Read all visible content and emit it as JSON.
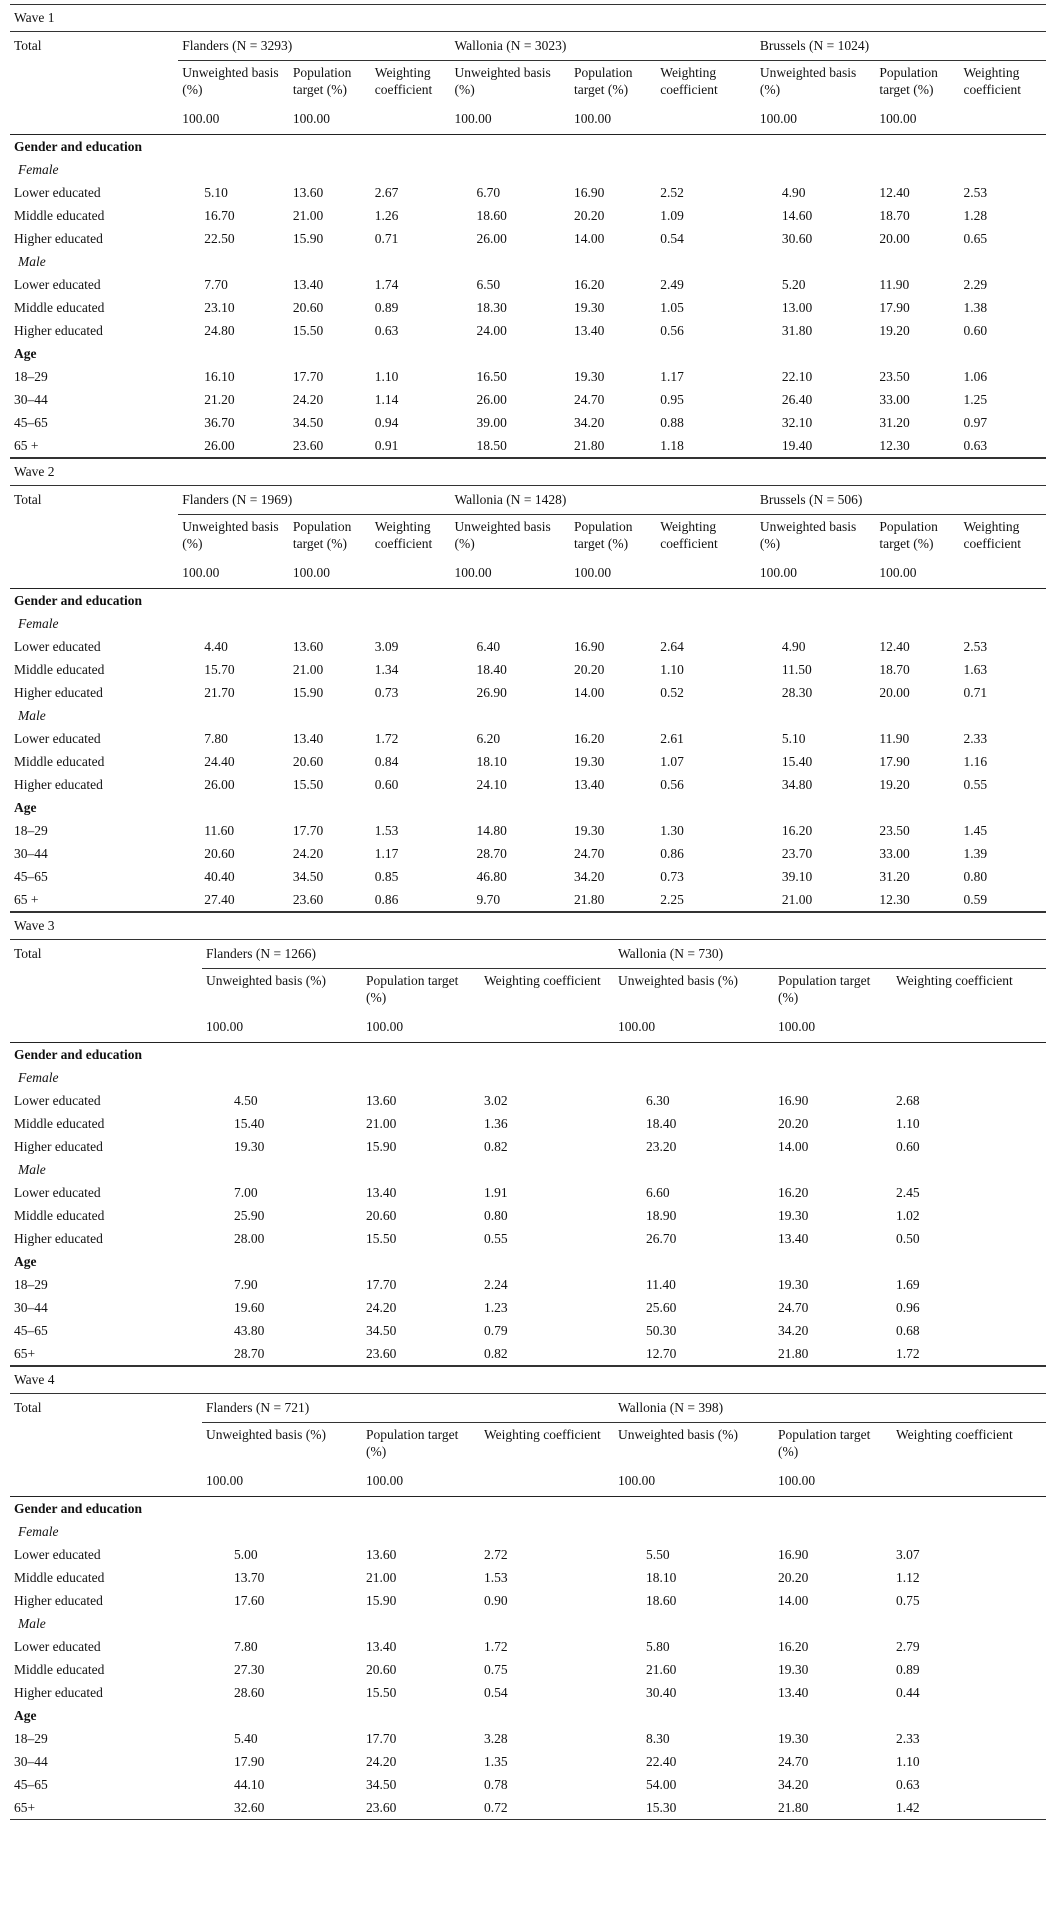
{
  "waves": [
    {
      "title": "Wave 1",
      "total_label": "Total",
      "columns": [
        "Unweighted basis (%)",
        "Population target (%)",
        "Weighting coefficient"
      ],
      "regions": [
        {
          "label": "Flanders (N = 3293)",
          "totals": [
            "100.00",
            "100.00"
          ]
        },
        {
          "label": "Wallonia (N = 3023)",
          "totals": [
            "100.00",
            "100.00"
          ]
        },
        {
          "label": "Brussels (N = 1024)",
          "totals": [
            "100.00",
            "100.00"
          ]
        }
      ],
      "sections": [
        {
          "title": "Gender and education",
          "groups": [
            {
              "label": "Female",
              "rows": [
                {
                  "label": "Lower educated",
                  "values": [
                    "5.10",
                    "13.60",
                    "2.67",
                    "6.70",
                    "16.90",
                    "2.52",
                    "4.90",
                    "12.40",
                    "2.53"
                  ]
                },
                {
                  "label": "Middle educated",
                  "values": [
                    "16.70",
                    "21.00",
                    "1.26",
                    "18.60",
                    "20.20",
                    "1.09",
                    "14.60",
                    "18.70",
                    "1.28"
                  ]
                },
                {
                  "label": "Higher educated",
                  "values": [
                    "22.50",
                    "15.90",
                    "0.71",
                    "26.00",
                    "14.00",
                    "0.54",
                    "30.60",
                    "20.00",
                    "0.65"
                  ]
                }
              ]
            },
            {
              "label": "Male",
              "rows": [
                {
                  "label": "Lower educated",
                  "values": [
                    "7.70",
                    "13.40",
                    "1.74",
                    "6.50",
                    "16.20",
                    "2.49",
                    "5.20",
                    "11.90",
                    "2.29"
                  ]
                },
                {
                  "label": "Middle educated",
                  "values": [
                    "23.10",
                    "20.60",
                    "0.89",
                    "18.30",
                    "19.30",
                    "1.05",
                    "13.00",
                    "17.90",
                    "1.38"
                  ]
                },
                {
                  "label": "Higher educated",
                  "values": [
                    "24.80",
                    "15.50",
                    "0.63",
                    "24.00",
                    "13.40",
                    "0.56",
                    "31.80",
                    "19.20",
                    "0.60"
                  ]
                }
              ]
            }
          ]
        },
        {
          "title": "Age",
          "groups": [
            {
              "rows": [
                {
                  "label": "18–29",
                  "values": [
                    "16.10",
                    "17.70",
                    "1.10",
                    "16.50",
                    "19.30",
                    "1.17",
                    "22.10",
                    "23.50",
                    "1.06"
                  ]
                },
                {
                  "label": "30–44",
                  "values": [
                    "21.20",
                    "24.20",
                    "1.14",
                    "26.00",
                    "24.70",
                    "0.95",
                    "26.40",
                    "33.00",
                    "1.25"
                  ]
                },
                {
                  "label": "45–65",
                  "values": [
                    "36.70",
                    "34.50",
                    "0.94",
                    "39.00",
                    "34.20",
                    "0.88",
                    "32.10",
                    "31.20",
                    "0.97"
                  ]
                },
                {
                  "label": "65 +",
                  "values": [
                    "26.00",
                    "23.60",
                    "0.91",
                    "18.50",
                    "21.80",
                    "1.18",
                    "19.40",
                    "12.30",
                    "0.63"
                  ]
                }
              ]
            }
          ]
        }
      ]
    },
    {
      "title": "Wave 2",
      "total_label": "Total",
      "columns": [
        "Unweighted basis (%)",
        "Population target (%)",
        "Weighting coefficient"
      ],
      "regions": [
        {
          "label": "Flanders (N = 1969)",
          "totals": [
            "100.00",
            "100.00"
          ]
        },
        {
          "label": "Wallonia (N = 1428)",
          "totals": [
            "100.00",
            "100.00"
          ]
        },
        {
          "label": "Brussels (N = 506)",
          "totals": [
            "100.00",
            "100.00"
          ]
        }
      ],
      "sections": [
        {
          "title": "Gender and education",
          "groups": [
            {
              "label": "Female",
              "rows": [
                {
                  "label": "Lower educated",
                  "values": [
                    "4.40",
                    "13.60",
                    "3.09",
                    "6.40",
                    "16.90",
                    "2.64",
                    "4.90",
                    "12.40",
                    "2.53"
                  ]
                },
                {
                  "label": "Middle educated",
                  "values": [
                    "15.70",
                    "21.00",
                    "1.34",
                    "18.40",
                    "20.20",
                    "1.10",
                    "11.50",
                    "18.70",
                    "1.63"
                  ]
                },
                {
                  "label": "Higher educated",
                  "values": [
                    "21.70",
                    "15.90",
                    "0.73",
                    "26.90",
                    "14.00",
                    "0.52",
                    "28.30",
                    "20.00",
                    "0.71"
                  ]
                }
              ]
            },
            {
              "label": "Male",
              "rows": [
                {
                  "label": "Lower educated",
                  "values": [
                    "7.80",
                    "13.40",
                    "1.72",
                    "6.20",
                    "16.20",
                    "2.61",
                    "5.10",
                    "11.90",
                    "2.33"
                  ]
                },
                {
                  "label": "Middle educated",
                  "values": [
                    "24.40",
                    "20.60",
                    "0.84",
                    "18.10",
                    "19.30",
                    "1.07",
                    "15.40",
                    "17.90",
                    "1.16"
                  ]
                },
                {
                  "label": "Higher educated",
                  "values": [
                    "26.00",
                    "15.50",
                    "0.60",
                    "24.10",
                    "13.40",
                    "0.56",
                    "34.80",
                    "19.20",
                    "0.55"
                  ]
                }
              ]
            }
          ]
        },
        {
          "title": "Age",
          "groups": [
            {
              "rows": [
                {
                  "label": "18–29",
                  "values": [
                    "11.60",
                    "17.70",
                    "1.53",
                    "14.80",
                    "19.30",
                    "1.30",
                    "16.20",
                    "23.50",
                    "1.45"
                  ]
                },
                {
                  "label": "30–44",
                  "values": [
                    "20.60",
                    "24.20",
                    "1.17",
                    "28.70",
                    "24.70",
                    "0.86",
                    "23.70",
                    "33.00",
                    "1.39"
                  ]
                },
                {
                  "label": "45–65",
                  "values": [
                    "40.40",
                    "34.50",
                    "0.85",
                    "46.80",
                    "34.20",
                    "0.73",
                    "39.10",
                    "31.20",
                    "0.80"
                  ]
                },
                {
                  "label": "65 +",
                  "values": [
                    "27.40",
                    "23.60",
                    "0.86",
                    "9.70",
                    "21.80",
                    "2.25",
                    "21.00",
                    "12.30",
                    "0.59"
                  ]
                }
              ]
            }
          ]
        }
      ]
    },
    {
      "title": "Wave 3",
      "total_label": "Total",
      "columns": [
        "Unweighted basis (%)",
        "Population target (%)",
        "Weighting coefficient"
      ],
      "regions": [
        {
          "label": "Flanders (N = 1266)",
          "totals": [
            "100.00",
            "100.00"
          ]
        },
        {
          "label": "Wallonia (N = 730)",
          "totals": [
            "100.00",
            "100.00"
          ]
        }
      ],
      "sections": [
        {
          "title": "Gender and education",
          "groups": [
            {
              "label": "Female",
              "rows": [
                {
                  "label": "Lower educated",
                  "values": [
                    "4.50",
                    "13.60",
                    "3.02",
                    "6.30",
                    "16.90",
                    "2.68"
                  ]
                },
                {
                  "label": "Middle educated",
                  "values": [
                    "15.40",
                    "21.00",
                    "1.36",
                    "18.40",
                    "20.20",
                    "1.10"
                  ]
                },
                {
                  "label": "Higher educated",
                  "values": [
                    "19.30",
                    "15.90",
                    "0.82",
                    "23.20",
                    "14.00",
                    "0.60"
                  ]
                }
              ]
            },
            {
              "label": "Male",
              "rows": [
                {
                  "label": "Lower educated",
                  "values": [
                    "7.00",
                    "13.40",
                    "1.91",
                    "6.60",
                    "16.20",
                    "2.45"
                  ]
                },
                {
                  "label": "Middle educated",
                  "values": [
                    "25.90",
                    "20.60",
                    "0.80",
                    "18.90",
                    "19.30",
                    "1.02"
                  ]
                },
                {
                  "label": "Higher educated",
                  "values": [
                    "28.00",
                    "15.50",
                    "0.55",
                    "26.70",
                    "13.40",
                    "0.50"
                  ]
                }
              ]
            }
          ]
        },
        {
          "title": "Age",
          "groups": [
            {
              "rows": [
                {
                  "label": "18–29",
                  "values": [
                    "7.90",
                    "17.70",
                    "2.24",
                    "11.40",
                    "19.30",
                    "1.69"
                  ]
                },
                {
                  "label": "30–44",
                  "values": [
                    "19.60",
                    "24.20",
                    "1.23",
                    "25.60",
                    "24.70",
                    "0.96"
                  ]
                },
                {
                  "label": "45–65",
                  "values": [
                    "43.80",
                    "34.50",
                    "0.79",
                    "50.30",
                    "34.20",
                    "0.68"
                  ]
                },
                {
                  "label": "65+",
                  "values": [
                    "28.70",
                    "23.60",
                    "0.82",
                    "12.70",
                    "21.80",
                    "1.72"
                  ]
                }
              ]
            }
          ]
        }
      ]
    },
    {
      "title": "Wave 4",
      "total_label": "Total",
      "columns": [
        "Unweighted basis (%)",
        "Population target (%)",
        "Weighting coefficient"
      ],
      "regions": [
        {
          "label": "Flanders (N = 721)",
          "totals": [
            "100.00",
            "100.00"
          ]
        },
        {
          "label": "Wallonia (N = 398)",
          "totals": [
            "100.00",
            "100.00"
          ]
        }
      ],
      "sections": [
        {
          "title": "Gender and education",
          "groups": [
            {
              "label": "Female",
              "rows": [
                {
                  "label": "Lower educated",
                  "values": [
                    "5.00",
                    "13.60",
                    "2.72",
                    "5.50",
                    "16.90",
                    "3.07"
                  ]
                },
                {
                  "label": "Middle educated",
                  "values": [
                    "13.70",
                    "21.00",
                    "1.53",
                    "18.10",
                    "20.20",
                    "1.12"
                  ]
                },
                {
                  "label": "Higher educated",
                  "values": [
                    "17.60",
                    "15.90",
                    "0.90",
                    "18.60",
                    "14.00",
                    "0.75"
                  ]
                }
              ]
            },
            {
              "label": "Male",
              "rows": [
                {
                  "label": "Lower educated",
                  "values": [
                    "7.80",
                    "13.40",
                    "1.72",
                    "5.80",
                    "16.20",
                    "2.79"
                  ]
                },
                {
                  "label": "Middle educated",
                  "values": [
                    "27.30",
                    "20.60",
                    "0.75",
                    "21.60",
                    "19.30",
                    "0.89"
                  ]
                },
                {
                  "label": "Higher educated",
                  "values": [
                    "28.60",
                    "15.50",
                    "0.54",
                    "30.40",
                    "13.40",
                    "0.44"
                  ]
                }
              ]
            }
          ]
        },
        {
          "title": "Age",
          "groups": [
            {
              "rows": [
                {
                  "label": "18–29",
                  "values": [
                    "5.40",
                    "17.70",
                    "3.28",
                    "8.30",
                    "19.30",
                    "2.33"
                  ]
                },
                {
                  "label": "30–44",
                  "values": [
                    "17.90",
                    "24.20",
                    "1.35",
                    "22.40",
                    "24.70",
                    "1.10"
                  ]
                },
                {
                  "label": "45–65",
                  "values": [
                    "44.10",
                    "34.50",
                    "0.78",
                    "54.00",
                    "34.20",
                    "0.63"
                  ]
                },
                {
                  "label": "65+",
                  "values": [
                    "32.60",
                    "23.60",
                    "0.72",
                    "15.30",
                    "21.80",
                    "1.42"
                  ]
                }
              ]
            }
          ]
        }
      ]
    }
  ]
}
